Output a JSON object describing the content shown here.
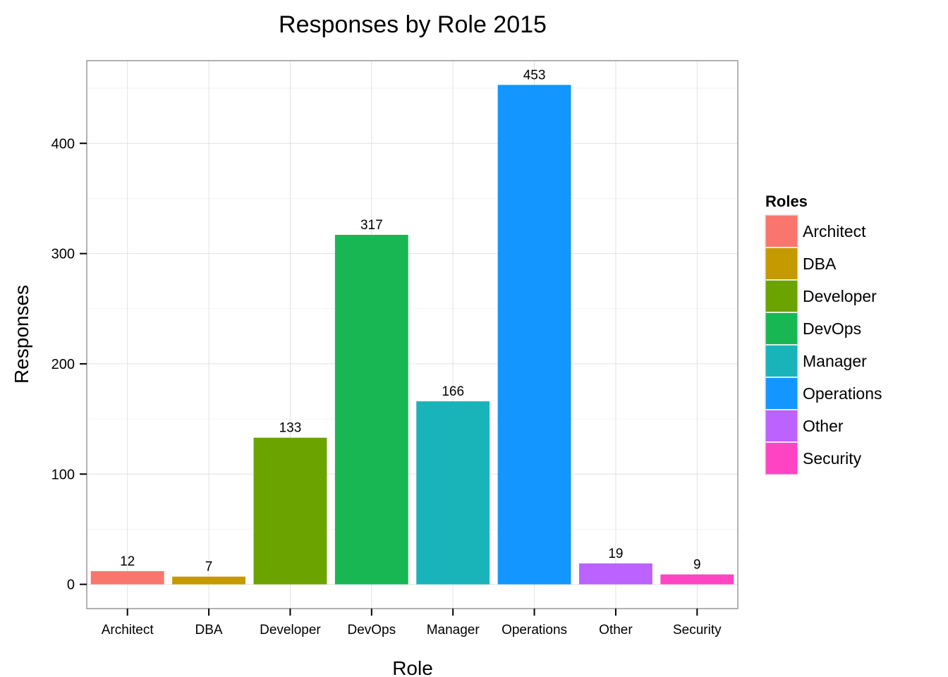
{
  "chart_data": {
    "type": "bar",
    "title": "Responses by Role 2015",
    "xlabel": "Role",
    "ylabel": "Responses",
    "categories": [
      "Architect",
      "DBA",
      "Developer",
      "DevOps",
      "Manager",
      "Operations",
      "Other",
      "Security"
    ],
    "values": [
      12,
      7,
      133,
      317,
      166,
      453,
      19,
      9
    ],
    "data_labels": [
      "12",
      "7",
      "133",
      "317",
      "166",
      "453",
      "19",
      "9"
    ],
    "colors": [
      "#F8766D",
      "#C49A00",
      "#6BA300",
      "#18B754",
      "#19B4B9",
      "#1396FF",
      "#BB62FF",
      "#FF44C3"
    ],
    "yticks": [
      0,
      100,
      200,
      300,
      400
    ],
    "ytick_labels": [
      "0",
      "100",
      "200",
      "300",
      "400"
    ],
    "ylim": [
      -22,
      475
    ],
    "grid": true,
    "legend": {
      "title": "Roles",
      "position": "right",
      "entries": [
        "Architect",
        "DBA",
        "Developer",
        "DevOps",
        "Manager",
        "Operations",
        "Other",
        "Security"
      ]
    }
  }
}
